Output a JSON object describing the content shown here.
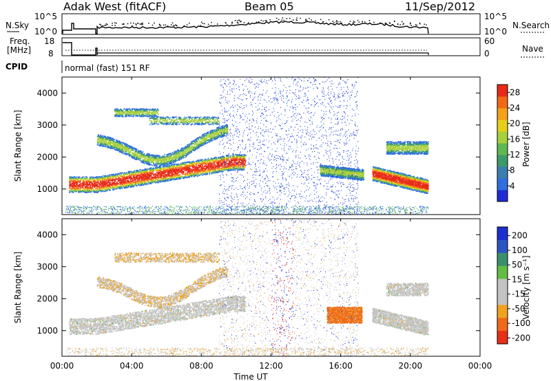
{
  "header": {
    "title": "Adak West (fitACF)",
    "beam": "Beam 05",
    "date": "11/Sep/2012"
  },
  "nsky": {
    "label": "N.Sky",
    "ticks_left": [
      "10^5",
      "10^0"
    ],
    "ticks_right": [
      "10^5",
      "10^0"
    ],
    "right_label": "N.Search"
  },
  "freq": {
    "label_line1": "Freq.",
    "label_line2": "[MHz]",
    "ticks_left": [
      "18",
      "8"
    ],
    "ticks_right": [
      "60",
      "0"
    ],
    "right_label": "Nave"
  },
  "cpid": {
    "label": "CPID",
    "text": "normal (fast) 151 RF"
  },
  "colors": {
    "power": [
      "#1f2bd4",
      "#2f6fe0",
      "#3a7fb0",
      "#3d9a6a",
      "#5fb850",
      "#a6cf3d",
      "#e6cf1a",
      "#f3a21a",
      "#f06a16",
      "#e82a18"
    ],
    "velocity": [
      "#1b2fd0",
      "#2d55c2",
      "#3c8f6b",
      "#63bd45",
      "#c3c3c3",
      "#c3c3c3",
      "#f0a320",
      "#ef6a1a",
      "#e63018"
    ]
  },
  "chart_data": [
    {
      "type": "heatmap",
      "name": "power",
      "ylabel": "Slant Range [km]",
      "yticks": [
        "1000",
        "2000",
        "3000",
        "4000"
      ],
      "ylim": [
        200,
        4500
      ],
      "xlim": [
        "00:00",
        "24:00"
      ],
      "colorbar_label": "Power [dB]",
      "colorbar_ticks": [
        "4",
        "8",
        "12",
        "16",
        "20",
        "24",
        "28"
      ],
      "colorbar_range": [
        0,
        30
      ]
    },
    {
      "type": "heatmap",
      "name": "velocity",
      "ylabel": "Slant Range [km]",
      "yticks": [
        "1000",
        "2000",
        "3000",
        "4000"
      ],
      "ylim": [
        200,
        4500
      ],
      "xlim": [
        "00:00",
        "24:00"
      ],
      "xlabel": "Time UT",
      "xticks": [
        "00:00",
        "04:00",
        "08:00",
        "12:00",
        "16:00",
        "20:00",
        "00:00"
      ],
      "colorbar_label": "Velocity [m s⁻¹]",
      "colorbar_ticks": [
        "200",
        "100",
        "50",
        "15",
        "-15",
        "-50",
        "-100",
        "-200"
      ],
      "colorbar_range": [
        -250,
        250
      ]
    }
  ]
}
